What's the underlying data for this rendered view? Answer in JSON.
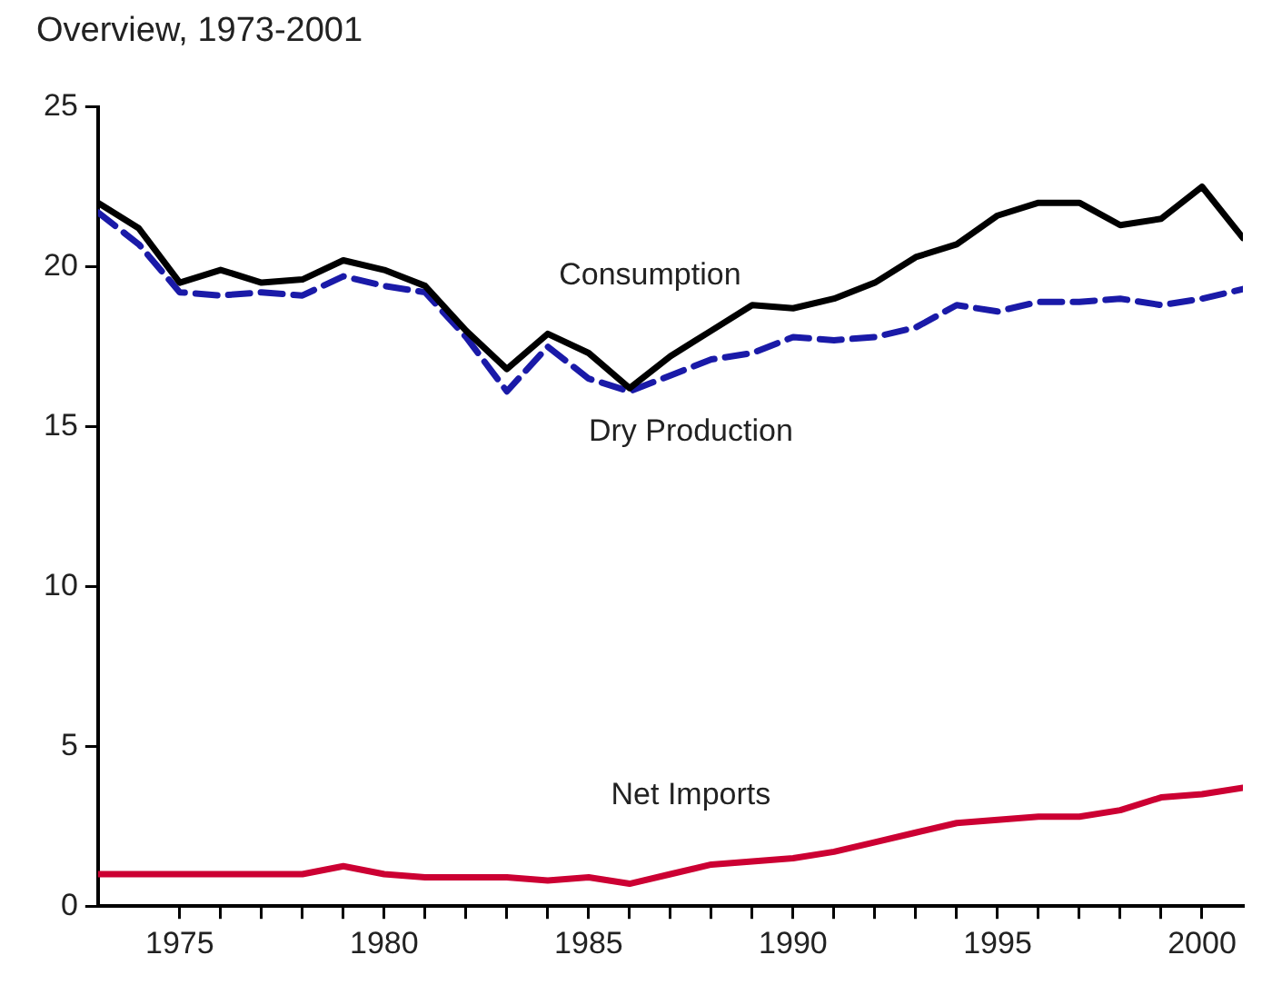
{
  "chart_data": {
    "type": "line",
    "title": "Overview, 1973-2001",
    "x": [
      1973,
      1974,
      1975,
      1976,
      1977,
      1978,
      1979,
      1980,
      1981,
      1982,
      1983,
      1984,
      1985,
      1986,
      1987,
      1988,
      1989,
      1990,
      1991,
      1992,
      1993,
      1994,
      1995,
      1996,
      1997,
      1998,
      1999,
      2000,
      2001
    ],
    "series": [
      {
        "name": "Consumption",
        "color": "#000000",
        "line_style": "solid",
        "values": [
          22.0,
          21.2,
          19.5,
          19.9,
          19.5,
          19.6,
          20.2,
          19.9,
          19.4,
          18.0,
          16.8,
          17.9,
          17.3,
          16.2,
          17.2,
          18.0,
          18.8,
          18.7,
          19.0,
          19.5,
          20.3,
          20.7,
          21.6,
          22.0,
          22.0,
          21.3,
          21.5,
          22.5,
          20.9
        ]
      },
      {
        "name": "Dry Production",
        "color": "#1a1aa8",
        "line_style": "dashed",
        "values": [
          21.7,
          20.7,
          19.2,
          19.1,
          19.2,
          19.1,
          19.7,
          19.4,
          19.2,
          17.8,
          16.1,
          17.5,
          16.5,
          16.1,
          16.6,
          17.1,
          17.3,
          17.8,
          17.7,
          17.8,
          18.1,
          18.8,
          18.6,
          18.9,
          18.9,
          19.0,
          18.8,
          19.0,
          19.3
        ]
      },
      {
        "name": "Net Imports",
        "color": "#cc0033",
        "line_style": "solid",
        "values": [
          1.0,
          1.0,
          1.0,
          1.0,
          1.0,
          1.0,
          1.25,
          1.0,
          0.9,
          0.9,
          0.9,
          0.8,
          0.9,
          0.7,
          1.0,
          1.3,
          1.4,
          1.5,
          1.7,
          2.0,
          2.3,
          2.6,
          2.7,
          2.8,
          2.8,
          3.0,
          3.4,
          3.5,
          3.7
        ]
      }
    ],
    "xlim": [
      1973,
      2001
    ],
    "xticks": [
      1975,
      {
        "value": 1976,
        "label": null
      },
      {
        "value": 1977,
        "label": null
      },
      {
        "value": 1978,
        "label": null
      },
      {
        "value": 1979,
        "label": null
      },
      1980,
      {
        "value": 1981,
        "label": null
      },
      {
        "value": 1982,
        "label": null
      },
      {
        "value": 1983,
        "label": null
      },
      {
        "value": 1984,
        "label": null
      },
      1985,
      {
        "value": 1986,
        "label": null
      },
      {
        "value": 1987,
        "label": null
      },
      {
        "value": 1988,
        "label": null
      },
      {
        "value": 1989,
        "label": null
      },
      1990,
      {
        "value": 1991,
        "label": null
      },
      {
        "value": 1992,
        "label": null
      },
      {
        "value": 1993,
        "label": null
      },
      {
        "value": 1994,
        "label": null
      },
      1995,
      {
        "value": 1996,
        "label": null
      },
      {
        "value": 1997,
        "label": null
      },
      {
        "value": 1998,
        "label": null
      },
      {
        "value": 1999,
        "label": null
      },
      2000
    ],
    "ylim": [
      0,
      25
    ],
    "yticks": [
      0,
      5,
      10,
      15,
      20,
      25
    ],
    "grid": false,
    "legend": false,
    "marker": "none"
  }
}
